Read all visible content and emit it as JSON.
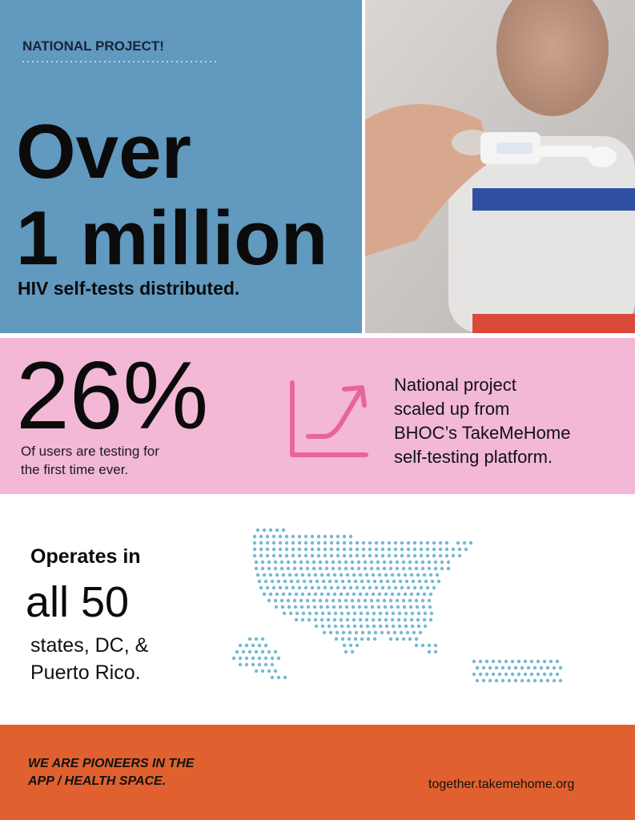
{
  "header": {
    "label": "NATIONAL PROJECT!"
  },
  "headline": {
    "lines": [
      "Over",
      "1 million"
    ],
    "caption": "HIV self-tests distributed."
  },
  "stat": {
    "value": "26%",
    "caption": [
      "Of users are testing for",
      "the first time ever."
    ]
  },
  "project": {
    "lines": [
      "National project",
      "scaled up from",
      "BHOC’s TakeMeHome",
      "self-testing platform."
    ]
  },
  "coverage": {
    "lead": "Operates in",
    "big": "all 50",
    "lines": [
      "states, DC, &",
      "Puerto Rico."
    ]
  },
  "footer": {
    "tagline": [
      "WE ARE PIONEERS IN THE",
      "APP / HEALTH SPACE."
    ],
    "url": "together.takemehome.org"
  }
}
